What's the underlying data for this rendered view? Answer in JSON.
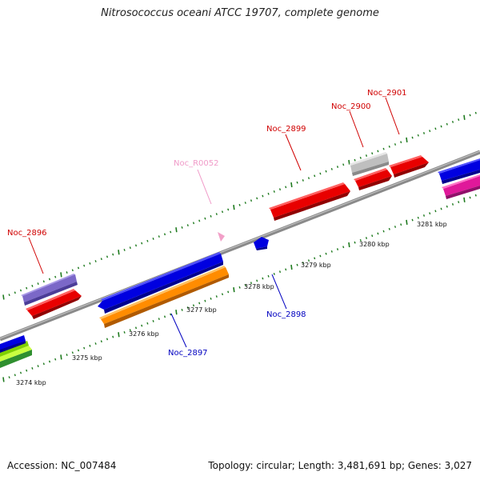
{
  "title": "Nitrosococcus oceani ATCC 19707, complete genome",
  "accession_text": "Accession: NC_007484",
  "summary_text": "Topology: circular; Length: 3,481,691 bp; Genes: 3,027",
  "scale": {
    "ticks": [
      {
        "label": "3274 kbp"
      },
      {
        "label": "3275 kbp"
      },
      {
        "label": "3276 kbp"
      },
      {
        "label": "3277 kbp"
      },
      {
        "label": "3278 kbp"
      },
      {
        "label": "3279 kbp"
      },
      {
        "label": "3280 kbp"
      },
      {
        "label": "3281 kbp"
      }
    ]
  },
  "genes": [
    {
      "name": "Noc_2896",
      "strand": "forward",
      "color": "#7B68C8",
      "label_color": "#D00000"
    },
    {
      "name": "Noc_2897",
      "strand": "reverse",
      "color": "#0000E0",
      "label_color": "#0000C0"
    },
    {
      "name": "Noc_R0052",
      "strand": "forward",
      "color": "#F2A0C8",
      "label_color": "#F09AC8"
    },
    {
      "name": "Noc_2898",
      "strand": "reverse",
      "color": "#0000E0",
      "label_color": "#0000C0"
    },
    {
      "name": "Noc_2899",
      "strand": "forward",
      "color": "#E80000",
      "label_color": "#D00000"
    },
    {
      "name": "Noc_2900",
      "strand": "forward",
      "color": "#E80000",
      "label_color": "#D00000"
    },
    {
      "name": "Noc_2901",
      "strand": "forward",
      "color": "#E80000",
      "label_color": "#D00000"
    }
  ],
  "colors": {
    "backbone": "#8a8a8a",
    "tick": "#1e7a1e",
    "feature_red": "#E80000",
    "feature_blue": "#0000E0",
    "feature_orange": "#FF8C00",
    "feature_grey": "#BFBFBF",
    "feature_purple": "#7B68C8",
    "feature_magenta": "#E0189A",
    "feature_green": "#7FD000"
  }
}
